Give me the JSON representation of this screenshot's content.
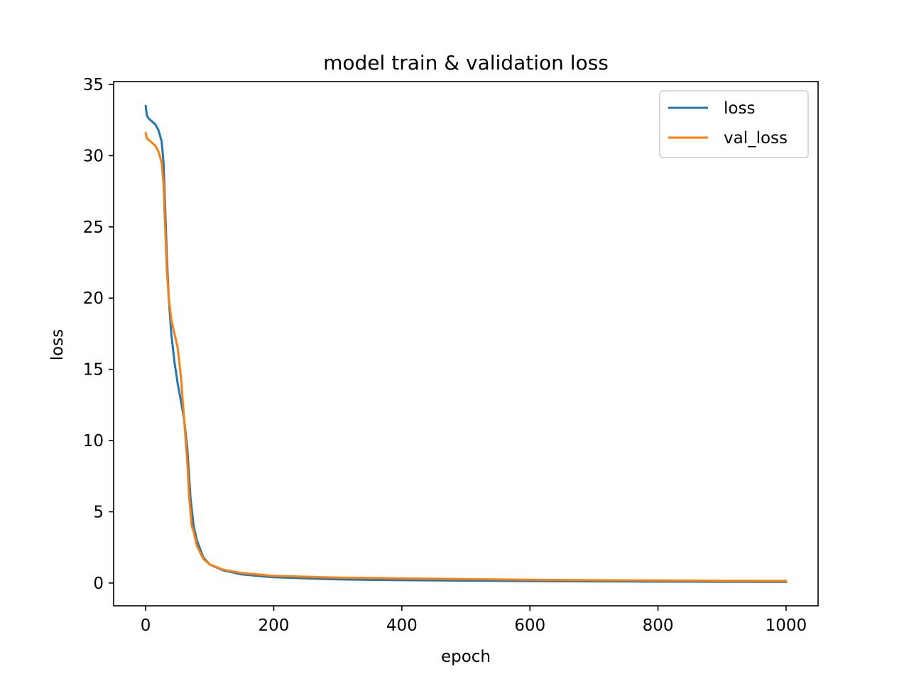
{
  "chart_data": {
    "type": "line",
    "title": "model train & validation loss",
    "xlabel": "epoch",
    "ylabel": "loss",
    "xlim": [
      -50,
      1050
    ],
    "ylim": [
      -1.6,
      35.2
    ],
    "xticks": [
      0,
      200,
      400,
      600,
      800,
      1000
    ],
    "yticks": [
      0,
      5,
      10,
      15,
      20,
      25,
      30,
      35
    ],
    "grid": false,
    "legend": "top-right",
    "series": [
      {
        "name": "loss",
        "color": "#1f77b4",
        "x": [
          0,
          2,
          5,
          10,
          15,
          20,
          25,
          28,
          30,
          33,
          36,
          40,
          45,
          50,
          55,
          60,
          65,
          70,
          75,
          80,
          90,
          100,
          120,
          150,
          200,
          300,
          400,
          500,
          600,
          700,
          800,
          900,
          1000
        ],
        "y": [
          33.5,
          32.8,
          32.6,
          32.4,
          32.2,
          31.8,
          31.0,
          29.5,
          27.0,
          23.0,
          20.0,
          17.5,
          15.5,
          14.0,
          12.8,
          11.5,
          9.5,
          6.0,
          4.0,
          3.0,
          1.8,
          1.3,
          0.9,
          0.6,
          0.4,
          0.25,
          0.2,
          0.17,
          0.14,
          0.12,
          0.1,
          0.09,
          0.08
        ]
      },
      {
        "name": "val_loss",
        "color": "#ff7f0e",
        "x": [
          0,
          2,
          5,
          10,
          15,
          20,
          25,
          28,
          30,
          33,
          36,
          40,
          45,
          50,
          55,
          60,
          65,
          68,
          70,
          72,
          75,
          80,
          90,
          100,
          120,
          150,
          200,
          300,
          400,
          500,
          600,
          700,
          800,
          900,
          1000
        ],
        "y": [
          31.6,
          31.2,
          31.1,
          30.9,
          30.7,
          30.3,
          29.5,
          28.0,
          25.5,
          22.0,
          20.0,
          18.5,
          17.5,
          16.5,
          14.5,
          11.5,
          8.5,
          6.0,
          5.0,
          4.0,
          3.6,
          2.6,
          1.7,
          1.3,
          0.95,
          0.7,
          0.5,
          0.38,
          0.32,
          0.27,
          0.23,
          0.2,
          0.18,
          0.16,
          0.15
        ]
      }
    ]
  }
}
